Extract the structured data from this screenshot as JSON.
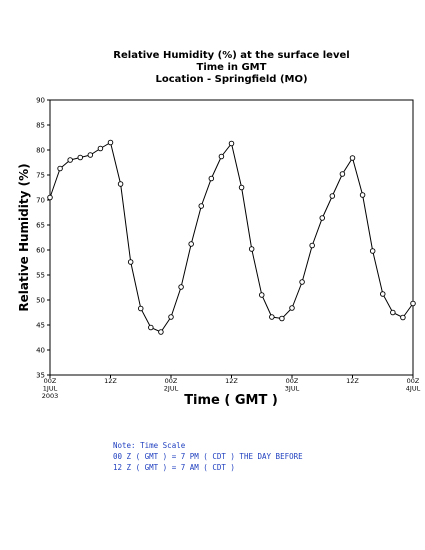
{
  "chart_data": {
    "type": "line",
    "title_lines": [
      "Relative Humidity (%) at the surface level",
      "Time in GMT",
      "Location - Springfield (MO)"
    ],
    "xlabel": "Time ( GMT )",
    "ylabel": "Relative Humidity (%)",
    "ylim": [
      35,
      90
    ],
    "yticks": [
      35,
      40,
      45,
      50,
      55,
      60,
      65,
      70,
      75,
      80,
      85,
      90
    ],
    "xlim": [
      0,
      72
    ],
    "xticks": [
      {
        "hour": 0,
        "lines": [
          "00Z",
          "1JUL",
          "2003"
        ]
      },
      {
        "hour": 12,
        "lines": [
          "12Z"
        ]
      },
      {
        "hour": 24,
        "lines": [
          "00Z",
          "2JUL"
        ]
      },
      {
        "hour": 36,
        "lines": [
          "12Z"
        ]
      },
      {
        "hour": 48,
        "lines": [
          "00Z",
          "3JUL"
        ]
      },
      {
        "hour": 60,
        "lines": [
          "12Z"
        ]
      },
      {
        "hour": 72,
        "lines": [
          "00Z",
          "4JUL"
        ]
      }
    ],
    "series": [
      {
        "x": [
          0,
          2,
          4,
          6,
          8,
          10,
          12,
          14,
          16,
          18,
          20,
          22,
          24,
          26,
          28,
          30,
          32,
          34,
          36,
          38,
          40,
          42,
          44,
          46,
          48,
          50,
          52,
          54,
          56,
          58,
          60,
          62,
          64,
          66,
          68,
          70,
          72
        ],
        "values": [
          70.5,
          76.3,
          78.0,
          78.5,
          79.0,
          80.3,
          81.5,
          73.2,
          57.6,
          48.3,
          44.5,
          43.6,
          46.6,
          52.6,
          61.2,
          68.8,
          74.3,
          78.7,
          81.3,
          72.5,
          60.2,
          51.0,
          46.6,
          46.3,
          48.4,
          53.6,
          60.9,
          66.4,
          70.8,
          75.2,
          78.4,
          71.0,
          59.8,
          51.2,
          47.5,
          46.5,
          49.3
        ]
      }
    ],
    "grid": false,
    "line_color": "#000000",
    "marker": "open-circle"
  },
  "note": {
    "lines": [
      "Note: Time Scale",
      "00 Z ( GMT ) = 7 PM ( CDT ) THE DAY BEFORE",
      "12 Z ( GMT ) = 7 AM ( CDT )"
    ],
    "color": "#1f3fbf"
  }
}
